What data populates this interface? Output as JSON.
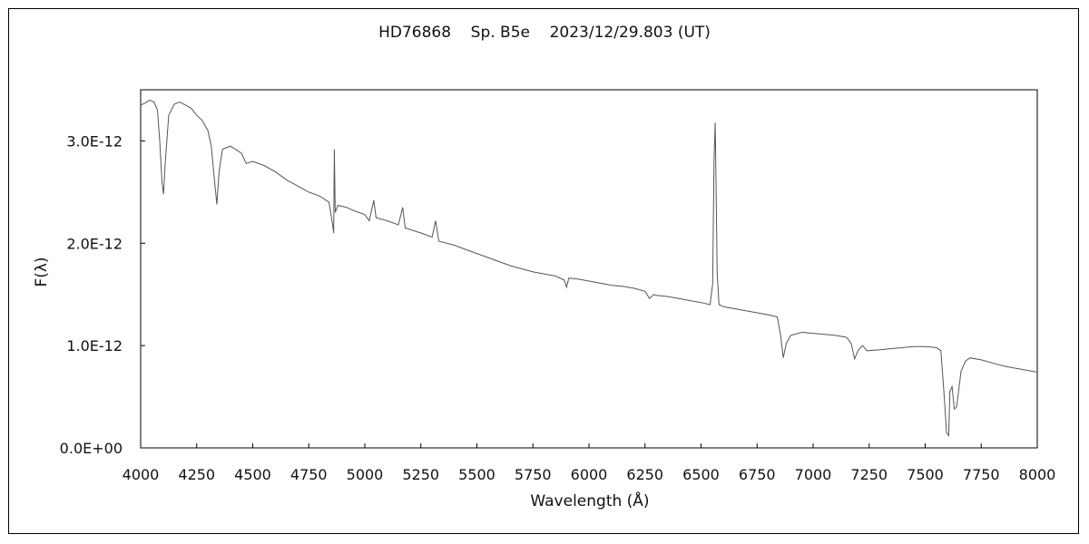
{
  "chart_data": {
    "type": "line",
    "title": "HD76868    Sp. B5e    2023/12/29.803 (UT)",
    "xlabel": "Wavelength (Å)",
    "ylabel": "F(λ)",
    "xlim": [
      4000,
      8000
    ],
    "ylim": [
      0,
      3.5e-12
    ],
    "xticks": [
      "4000",
      "4250",
      "4500",
      "4750",
      "5000",
      "5250",
      "5500",
      "5750",
      "6000",
      "6250",
      "6500",
      "6750",
      "7000",
      "7250",
      "7500",
      "7750",
      "8000"
    ],
    "yticks": [
      {
        "value": 0,
        "label": "0.0E+00"
      },
      {
        "value": 1e-12,
        "label": "1.0E-12"
      },
      {
        "value": 2e-12,
        "label": "2.0E-12"
      },
      {
        "value": 3e-12,
        "label": "3.0E-12"
      }
    ],
    "grid": false,
    "series": [
      {
        "color": "#555555",
        "points": [
          [
            4000,
            3.35e-12
          ],
          [
            4020,
            3.37e-12
          ],
          [
            4040,
            3.4e-12
          ],
          [
            4060,
            3.38e-12
          ],
          [
            4075,
            3.3e-12
          ],
          [
            4085,
            3e-12
          ],
          [
            4095,
            2.6e-12
          ],
          [
            4102,
            2.48e-12
          ],
          [
            4110,
            2.8e-12
          ],
          [
            4125,
            3.25e-12
          ],
          [
            4150,
            3.36e-12
          ],
          [
            4175,
            3.38e-12
          ],
          [
            4200,
            3.35e-12
          ],
          [
            4225,
            3.32e-12
          ],
          [
            4250,
            3.25e-12
          ],
          [
            4275,
            3.2e-12
          ],
          [
            4300,
            3.1e-12
          ],
          [
            4315,
            2.95e-12
          ],
          [
            4330,
            2.6e-12
          ],
          [
            4340,
            2.38e-12
          ],
          [
            4350,
            2.7e-12
          ],
          [
            4365,
            2.92e-12
          ],
          [
            4400,
            2.95e-12
          ],
          [
            4450,
            2.88e-12
          ],
          [
            4471,
            2.78e-12
          ],
          [
            4500,
            2.8e-12
          ],
          [
            4550,
            2.76e-12
          ],
          [
            4600,
            2.7e-12
          ],
          [
            4650,
            2.62e-12
          ],
          [
            4700,
            2.56e-12
          ],
          [
            4750,
            2.5e-12
          ],
          [
            4800,
            2.46e-12
          ],
          [
            4840,
            2.4e-12
          ],
          [
            4855,
            2.2e-12
          ],
          [
            4861,
            2.1e-12
          ],
          [
            4864,
            2.92e-12
          ],
          [
            4868,
            2.3e-12
          ],
          [
            4880,
            2.37e-12
          ],
          [
            4920,
            2.35e-12
          ],
          [
            4950,
            2.32e-12
          ],
          [
            5000,
            2.28e-12
          ],
          [
            5020,
            2.22e-12
          ],
          [
            5040,
            2.42e-12
          ],
          [
            5050,
            2.25e-12
          ],
          [
            5100,
            2.22e-12
          ],
          [
            5150,
            2.18e-12
          ],
          [
            5169,
            2.35e-12
          ],
          [
            5180,
            2.15e-12
          ],
          [
            5250,
            2.1e-12
          ],
          [
            5300,
            2.06e-12
          ],
          [
            5316,
            2.22e-12
          ],
          [
            5330,
            2.02e-12
          ],
          [
            5400,
            1.98e-12
          ],
          [
            5450,
            1.94e-12
          ],
          [
            5500,
            1.9e-12
          ],
          [
            5550,
            1.86e-12
          ],
          [
            5600,
            1.82e-12
          ],
          [
            5650,
            1.78e-12
          ],
          [
            5700,
            1.75e-12
          ],
          [
            5750,
            1.72e-12
          ],
          [
            5800,
            1.7e-12
          ],
          [
            5850,
            1.68e-12
          ],
          [
            5890,
            1.64e-12
          ],
          [
            5900,
            1.57e-12
          ],
          [
            5910,
            1.66e-12
          ],
          [
            5950,
            1.65e-12
          ],
          [
            6000,
            1.63e-12
          ],
          [
            6050,
            1.61e-12
          ],
          [
            6100,
            1.59e-12
          ],
          [
            6150,
            1.58e-12
          ],
          [
            6200,
            1.56e-12
          ],
          [
            6250,
            1.53e-12
          ],
          [
            6270,
            1.46e-12
          ],
          [
            6290,
            1.5e-12
          ],
          [
            6300,
            1.49e-12
          ],
          [
            6350,
            1.48e-12
          ],
          [
            6400,
            1.46e-12
          ],
          [
            6450,
            1.44e-12
          ],
          [
            6500,
            1.42e-12
          ],
          [
            6540,
            1.4e-12
          ],
          [
            6552,
            1.6e-12
          ],
          [
            6558,
            2.8e-12
          ],
          [
            6563,
            3.18e-12
          ],
          [
            6567,
            2.6e-12
          ],
          [
            6572,
            1.7e-12
          ],
          [
            6580,
            1.4e-12
          ],
          [
            6600,
            1.38e-12
          ],
          [
            6650,
            1.36e-12
          ],
          [
            6700,
            1.34e-12
          ],
          [
            6750,
            1.32e-12
          ],
          [
            6800,
            1.3e-12
          ],
          [
            6840,
            1.28e-12
          ],
          [
            6855,
            1.1e-12
          ],
          [
            6867,
            8.8e-13
          ],
          [
            6880,
            1.02e-12
          ],
          [
            6900,
            1.1e-12
          ],
          [
            6950,
            1.13e-12
          ],
          [
            7000,
            1.12e-12
          ],
          [
            7050,
            1.11e-12
          ],
          [
            7100,
            1.1e-12
          ],
          [
            7150,
            1.08e-12
          ],
          [
            7170,
            1.02e-12
          ],
          [
            7185,
            8.7e-13
          ],
          [
            7200,
            9.5e-13
          ],
          [
            7220,
            1e-12
          ],
          [
            7240,
            9.5e-13
          ],
          [
            7300,
            9.6e-13
          ],
          [
            7350,
            9.7e-13
          ],
          [
            7400,
            9.8e-13
          ],
          [
            7450,
            9.9e-13
          ],
          [
            7500,
            9.9e-13
          ],
          [
            7550,
            9.8e-13
          ],
          [
            7570,
            9.5e-13
          ],
          [
            7585,
            5e-13
          ],
          [
            7595,
            1.5e-13
          ],
          [
            7605,
            1.2e-13
          ],
          [
            7610,
            5.5e-13
          ],
          [
            7620,
            6e-13
          ],
          [
            7630,
            3.8e-13
          ],
          [
            7640,
            4e-13
          ],
          [
            7660,
            7.5e-13
          ],
          [
            7680,
            8.5e-13
          ],
          [
            7700,
            8.8e-13
          ],
          [
            7750,
            8.6e-13
          ],
          [
            7800,
            8.3e-13
          ],
          [
            7850,
            8e-13
          ],
          [
            7900,
            7.8e-13
          ],
          [
            7950,
            7.6e-13
          ],
          [
            8000,
            7.4e-13
          ]
        ]
      }
    ]
  }
}
